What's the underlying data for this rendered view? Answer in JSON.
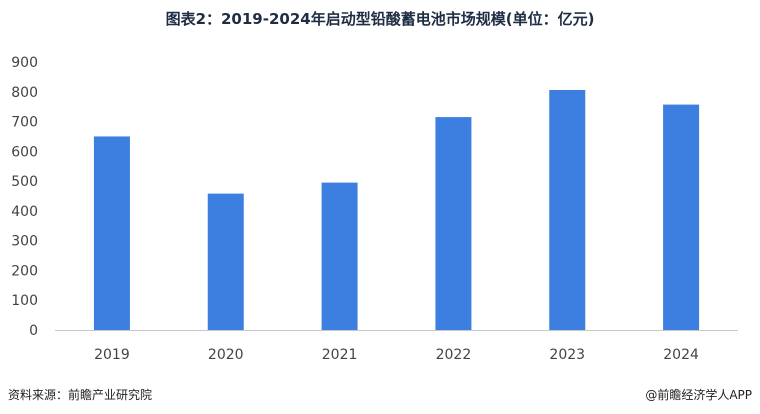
{
  "title": "图表2：2019-2024年启动型铅酸蓄电池市场规模(单位：亿元)",
  "source": "资料来源：前瞻产业研究院",
  "credit": "@前瞻经济学人APP",
  "chart_data": {
    "type": "bar",
    "categories": [
      "2019",
      "2020",
      "2021",
      "2022",
      "2023",
      "2024"
    ],
    "values": [
      650,
      458,
      495,
      715,
      806,
      757
    ],
    "ylim": [
      0,
      900
    ],
    "yticks": [
      0,
      100,
      200,
      300,
      400,
      500,
      600,
      700,
      800,
      900
    ],
    "grid": false,
    "bar_color": "#3d7fe0"
  }
}
